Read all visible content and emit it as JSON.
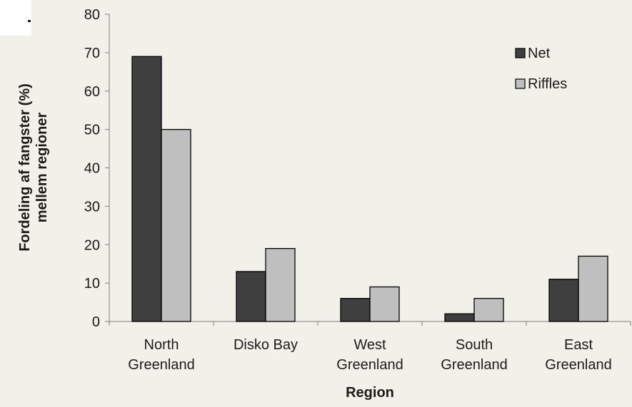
{
  "colors": {
    "background": "#f2f1e9",
    "net": "#3f3f3f",
    "riffles": "#bfbfbf",
    "axis": "#808080",
    "text": "#1a1a1a"
  },
  "chart_data": {
    "type": "bar",
    "title": "",
    "xlabel": "Region",
    "ylabel_lines": [
      "Fordeling af fangster (%)",
      "mellem regioner"
    ],
    "ylim": [
      0,
      80
    ],
    "yticks": [
      0,
      10,
      20,
      30,
      40,
      50,
      60,
      70,
      80
    ],
    "grid": false,
    "legend_position": "top-right",
    "categories": [
      [
        "North",
        "Greenland"
      ],
      [
        "Disko Bay"
      ],
      [
        "West",
        "Greenland"
      ],
      [
        "South",
        "Greenland"
      ],
      [
        "East",
        "Greenland"
      ]
    ],
    "series": [
      {
        "name": "Net",
        "values": [
          69,
          13,
          6,
          2,
          11
        ]
      },
      {
        "name": "Riffles",
        "values": [
          50,
          19,
          9,
          6,
          17
        ]
      }
    ]
  }
}
